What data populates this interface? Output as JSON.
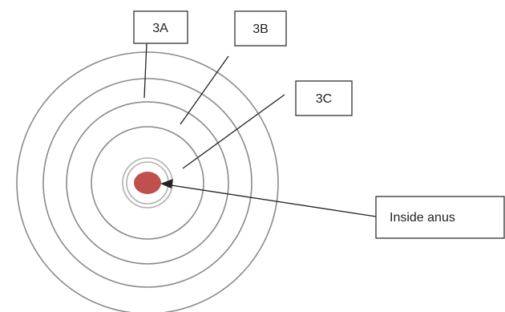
{
  "diagram": {
    "labels": {
      "zone_3a": "3A",
      "zone_3b": "3B",
      "zone_3c": "3C",
      "inside_anus": "Inside anus"
    },
    "colors": {
      "ring": "#8a8a8a",
      "inner_ring": "#b0b0b0",
      "center_fill": "#c0504d",
      "line": "#222222",
      "box_border": "#333333",
      "text": "#222222"
    }
  }
}
